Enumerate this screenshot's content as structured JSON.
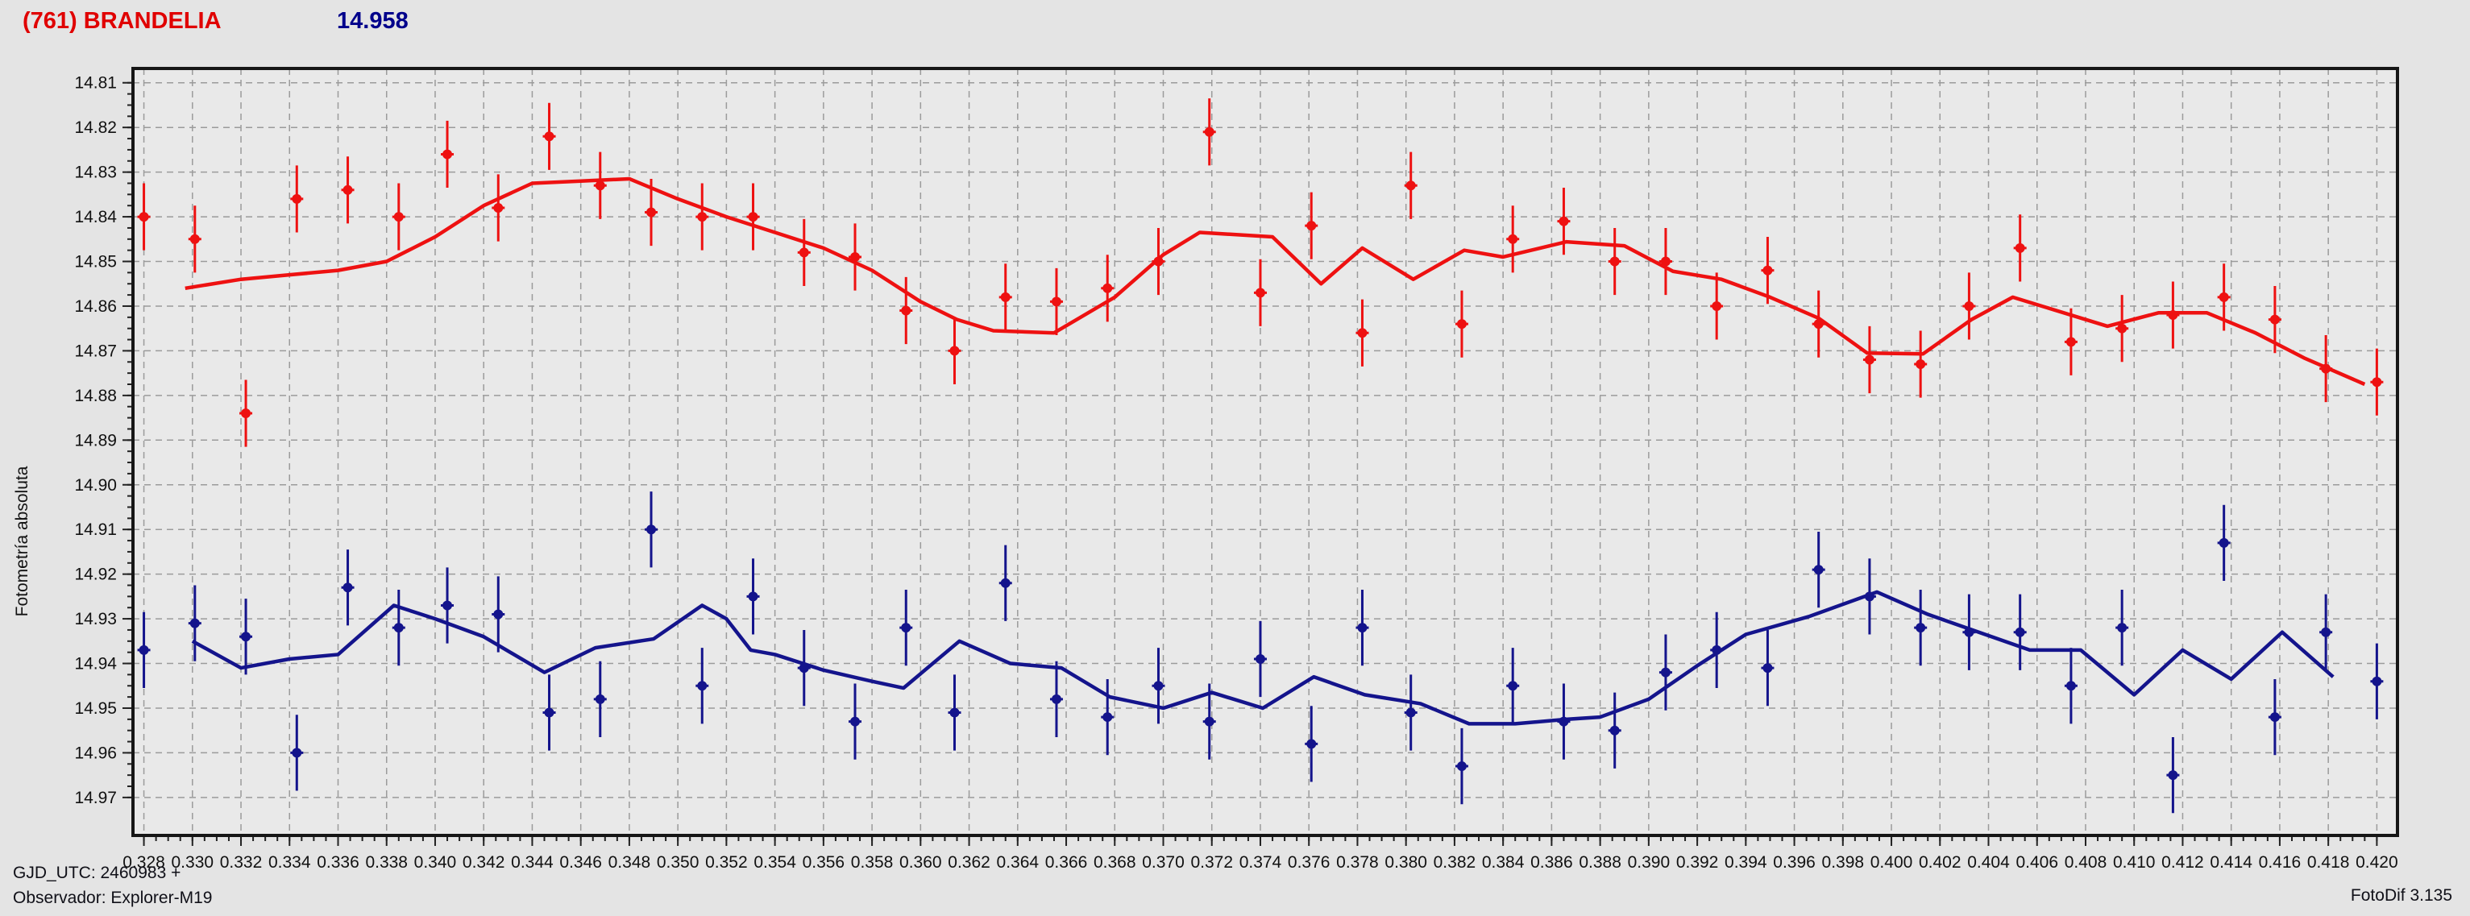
{
  "header": {
    "title": "(761) BRANDELIA",
    "title_color": "#e00000",
    "value": "14.958",
    "value_color": "#00008b"
  },
  "footer": {
    "gjd_utc": "GJD_UTC: 2460983 +",
    "observer": "Observador: Explorer-M19",
    "app_version": "FotoDif 3.135"
  },
  "chart_data": {
    "type": "scatter",
    "title": "",
    "xlabel": "",
    "ylabel": "Fotometría absoluta",
    "grid": true,
    "y_inverted": true,
    "xlim": [
      0.32755,
      0.42085
    ],
    "ylim": [
      14.9785,
      14.8068
    ],
    "x_ticks": {
      "start": 0.328,
      "end": 0.42,
      "step": 0.002,
      "minor_step": 0.0005,
      "decimals": 3
    },
    "y_ticks": {
      "start": 14.81,
      "end": 14.97,
      "step": 0.01,
      "minor_step": 0.0025,
      "decimals": 2
    },
    "colors": {
      "grid": "#9b9b9b",
      "frame": "#161616",
      "plot_bg": "#e9e9e9",
      "page_bg": "#e4e4e4",
      "tick_text": "#111111"
    },
    "series": [
      {
        "name": "filter-1-red",
        "color": "#ee1111",
        "err": 0.0075,
        "points": [
          [
            0.328,
            14.84
          ],
          [
            0.3301,
            14.845
          ],
          [
            0.3322,
            14.884
          ],
          [
            0.3343,
            14.836
          ],
          [
            0.3364,
            14.834
          ],
          [
            0.3385,
            14.84
          ],
          [
            0.3405,
            14.826
          ],
          [
            0.3426,
            14.838
          ],
          [
            0.3447,
            14.822
          ],
          [
            0.3468,
            14.833
          ],
          [
            0.3489,
            14.839
          ],
          [
            0.351,
            14.84
          ],
          [
            0.3531,
            14.84
          ],
          [
            0.3552,
            14.848
          ],
          [
            0.3573,
            14.849
          ],
          [
            0.3594,
            14.861
          ],
          [
            0.3614,
            14.87
          ],
          [
            0.3635,
            14.858
          ],
          [
            0.3656,
            14.859
          ],
          [
            0.3677,
            14.856
          ],
          [
            0.3698,
            14.85
          ],
          [
            0.3719,
            14.821
          ],
          [
            0.374,
            14.857
          ],
          [
            0.3761,
            14.842
          ],
          [
            0.3782,
            14.866
          ],
          [
            0.3802,
            14.833
          ],
          [
            0.3823,
            14.864
          ],
          [
            0.3844,
            14.845
          ],
          [
            0.3865,
            14.841
          ],
          [
            0.3886,
            14.85
          ],
          [
            0.3907,
            14.85
          ],
          [
            0.3928,
            14.86
          ],
          [
            0.3949,
            14.852
          ],
          [
            0.397,
            14.864
          ],
          [
            0.3991,
            14.872
          ],
          [
            0.4012,
            14.873
          ],
          [
            0.4032,
            14.86
          ],
          [
            0.4053,
            14.847
          ],
          [
            0.4074,
            14.868
          ],
          [
            0.4095,
            14.865
          ],
          [
            0.4116,
            14.862
          ],
          [
            0.4137,
            14.858
          ],
          [
            0.4158,
            14.863
          ],
          [
            0.4179,
            14.874
          ],
          [
            0.42,
            14.877
          ]
        ],
        "fit_line": [
          [
            0.3297,
            14.856
          ],
          [
            0.332,
            14.854
          ],
          [
            0.334,
            14.853
          ],
          [
            0.336,
            14.852
          ],
          [
            0.338,
            14.85
          ],
          [
            0.34,
            14.8445
          ],
          [
            0.342,
            14.8375
          ],
          [
            0.344,
            14.8325
          ],
          [
            0.346,
            14.832
          ],
          [
            0.348,
            14.8315
          ],
          [
            0.35,
            14.836
          ],
          [
            0.352,
            14.84
          ],
          [
            0.354,
            14.8435
          ],
          [
            0.356,
            14.847
          ],
          [
            0.358,
            14.852
          ],
          [
            0.36,
            14.859
          ],
          [
            0.3615,
            14.863
          ],
          [
            0.363,
            14.8655
          ],
          [
            0.3655,
            14.866
          ],
          [
            0.368,
            14.858
          ],
          [
            0.37,
            14.8485
          ],
          [
            0.3715,
            14.8435
          ],
          [
            0.3745,
            14.8445
          ],
          [
            0.3765,
            14.855
          ],
          [
            0.3782,
            14.847
          ],
          [
            0.3803,
            14.854
          ],
          [
            0.3824,
            14.8475
          ],
          [
            0.384,
            14.849
          ],
          [
            0.3866,
            14.8456
          ],
          [
            0.389,
            14.8465
          ],
          [
            0.391,
            14.8522
          ],
          [
            0.393,
            14.854
          ],
          [
            0.395,
            14.858
          ],
          [
            0.397,
            14.8627
          ],
          [
            0.399,
            14.8705
          ],
          [
            0.4013,
            14.8707
          ],
          [
            0.4033,
            14.863
          ],
          [
            0.405,
            14.858
          ],
          [
            0.4089,
            14.8645
          ],
          [
            0.411,
            14.8615
          ],
          [
            0.413,
            14.8615
          ],
          [
            0.415,
            14.866
          ],
          [
            0.417,
            14.8716
          ],
          [
            0.4195,
            14.8775
          ]
        ]
      },
      {
        "name": "filter-2-blue",
        "color": "#14148c",
        "err": 0.0085,
        "points": [
          [
            0.328,
            14.937
          ],
          [
            0.3301,
            14.931
          ],
          [
            0.3322,
            14.934
          ],
          [
            0.3343,
            14.96
          ],
          [
            0.3364,
            14.923
          ],
          [
            0.3385,
            14.932
          ],
          [
            0.3405,
            14.927
          ],
          [
            0.3426,
            14.929
          ],
          [
            0.3447,
            14.951
          ],
          [
            0.3468,
            14.948
          ],
          [
            0.3489,
            14.91
          ],
          [
            0.351,
            14.945
          ],
          [
            0.3531,
            14.925
          ],
          [
            0.3552,
            14.941
          ],
          [
            0.3573,
            14.953
          ],
          [
            0.3594,
            14.932
          ],
          [
            0.3614,
            14.951
          ],
          [
            0.3635,
            14.922
          ],
          [
            0.3656,
            14.948
          ],
          [
            0.3677,
            14.952
          ],
          [
            0.3698,
            14.945
          ],
          [
            0.3719,
            14.953
          ],
          [
            0.374,
            14.939
          ],
          [
            0.3761,
            14.958
          ],
          [
            0.3782,
            14.932
          ],
          [
            0.3802,
            14.951
          ],
          [
            0.3823,
            14.963
          ],
          [
            0.3844,
            14.945
          ],
          [
            0.3865,
            14.953
          ],
          [
            0.3886,
            14.955
          ],
          [
            0.3907,
            14.942
          ],
          [
            0.3928,
            14.937
          ],
          [
            0.3949,
            14.941
          ],
          [
            0.397,
            14.919
          ],
          [
            0.3991,
            14.925
          ],
          [
            0.4012,
            14.932
          ],
          [
            0.4032,
            14.933
          ],
          [
            0.4053,
            14.933
          ],
          [
            0.4074,
            14.945
          ],
          [
            0.4095,
            14.932
          ],
          [
            0.4116,
            14.965
          ],
          [
            0.4137,
            14.913
          ],
          [
            0.4158,
            14.952
          ],
          [
            0.4179,
            14.933
          ],
          [
            0.42,
            14.944
          ]
        ],
        "fit_line": [
          [
            0.33,
            14.935
          ],
          [
            0.332,
            14.941
          ],
          [
            0.334,
            14.939
          ],
          [
            0.336,
            14.938
          ],
          [
            0.3383,
            14.927
          ],
          [
            0.34,
            14.93
          ],
          [
            0.342,
            14.934
          ],
          [
            0.3445,
            14.942
          ],
          [
            0.3466,
            14.9365
          ],
          [
            0.349,
            14.9345
          ],
          [
            0.351,
            14.927
          ],
          [
            0.352,
            14.93
          ],
          [
            0.353,
            14.937
          ],
          [
            0.354,
            14.938
          ],
          [
            0.356,
            14.9415
          ],
          [
            0.358,
            14.944
          ],
          [
            0.3593,
            14.9455
          ],
          [
            0.3616,
            14.935
          ],
          [
            0.3637,
            14.94
          ],
          [
            0.3658,
            14.941
          ],
          [
            0.3678,
            14.9475
          ],
          [
            0.37,
            14.95
          ],
          [
            0.372,
            14.9465
          ],
          [
            0.3741,
            14.95
          ],
          [
            0.3762,
            14.943
          ],
          [
            0.3783,
            14.947
          ],
          [
            0.3806,
            14.949
          ],
          [
            0.3826,
            14.9535
          ],
          [
            0.3845,
            14.9535
          ],
          [
            0.3866,
            14.9525
          ],
          [
            0.388,
            14.952
          ],
          [
            0.39,
            14.948
          ],
          [
            0.392,
            14.9405
          ],
          [
            0.394,
            14.9335
          ],
          [
            0.3966,
            14.9295
          ],
          [
            0.3994,
            14.924
          ],
          [
            0.4015,
            14.929
          ],
          [
            0.4036,
            14.933
          ],
          [
            0.4057,
            14.937
          ],
          [
            0.4078,
            14.937
          ],
          [
            0.41,
            14.947
          ],
          [
            0.412,
            14.937
          ],
          [
            0.414,
            14.9435
          ],
          [
            0.4161,
            14.933
          ],
          [
            0.4182,
            14.943
          ]
        ]
      }
    ]
  }
}
